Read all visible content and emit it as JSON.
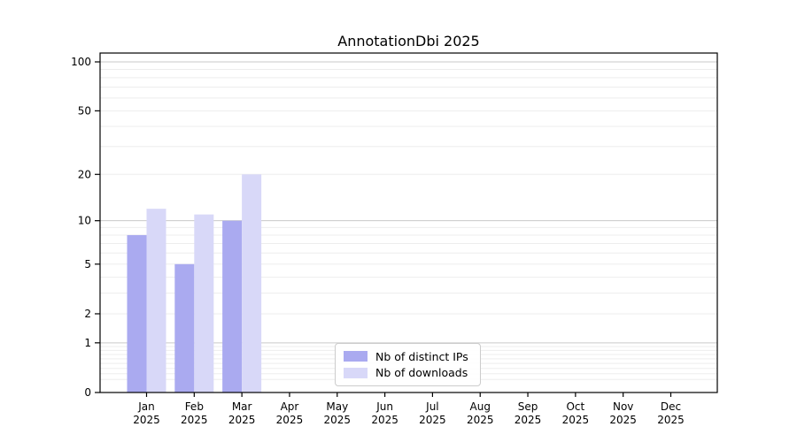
{
  "chart_data": {
    "type": "bar",
    "title": "AnnotationDbi 2025",
    "categories": [
      "Jan",
      "Feb",
      "Mar",
      "Apr",
      "May",
      "Jun",
      "Jul",
      "Aug",
      "Sep",
      "Oct",
      "Nov",
      "Dec"
    ],
    "year": "2025",
    "series": [
      {
        "name": "Nb of distinct IPs",
        "color": "#aaaaf0",
        "values": [
          8,
          5,
          10,
          0,
          0,
          0,
          0,
          0,
          0,
          0,
          0,
          0
        ]
      },
      {
        "name": "Nb of downloads",
        "color": "#d8d8f8",
        "values": [
          12,
          11,
          20,
          0,
          0,
          0,
          0,
          0,
          0,
          0,
          0,
          0
        ]
      }
    ],
    "y_axis": {
      "scale": "log1p",
      "ticks": [
        0,
        1,
        2,
        5,
        10,
        20,
        50,
        100
      ],
      "major_gridlines": [
        1,
        10,
        100
      ]
    },
    "legend": {
      "position": "lower center"
    },
    "colors": {
      "major_grid": "#c9c9c9",
      "minor_grid": "#ededed",
      "axis": "#000000",
      "background": "#ffffff"
    }
  }
}
